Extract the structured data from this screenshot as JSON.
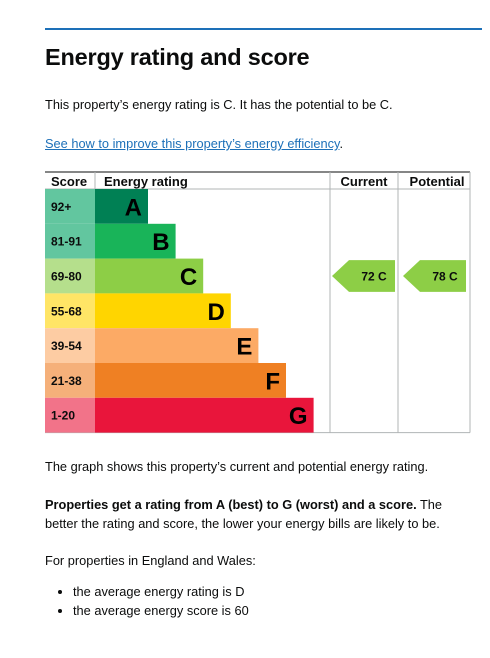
{
  "page": {
    "heading": "Energy rating and score",
    "summary": "This property’s energy rating is C. It has the potential to be C.",
    "link_text": "See how to improve this property’s energy efficiency",
    "link_suffix": ".",
    "graph_note": "The graph shows this property’s current and potential energy rating.",
    "bold_lead": "Properties get a rating from A (best) to G (worst) and a score.",
    "bold_rest": " The better the rating and score, the lower your energy bills are likely to be.",
    "regions": "For properties in England and Wales:",
    "averages": [
      "the average energy rating is D",
      "the average energy score is 60"
    ]
  },
  "chart_data": {
    "type": "table",
    "headers": {
      "score": "Score",
      "rating": "Energy rating",
      "current": "Current",
      "potential": "Potential"
    },
    "bands": [
      {
        "score": "92+",
        "letter": "A",
        "color": "#008054",
        "score_bg": "#62c69f"
      },
      {
        "score": "81-91",
        "letter": "B",
        "color": "#19b459",
        "score_bg": "#62c69f"
      },
      {
        "score": "69-80",
        "letter": "C",
        "color": "#8dce46",
        "score_bg": "#b5df8c"
      },
      {
        "score": "55-68",
        "letter": "D",
        "color": "#ffd500",
        "score_bg": "#ffe566"
      },
      {
        "score": "39-54",
        "letter": "E",
        "color": "#fcaa65",
        "score_bg": "#fdcca3"
      },
      {
        "score": "21-38",
        "letter": "F",
        "color": "#ef8023",
        "score_bg": "#f5b07a"
      },
      {
        "score": "1-20",
        "letter": "G",
        "color": "#e9153b",
        "score_bg": "#f27389"
      }
    ],
    "current": {
      "label": "72 C",
      "value": 72,
      "band": "C",
      "color": "#8dce46"
    },
    "potential": {
      "label": "78 C",
      "value": 78,
      "band": "C",
      "color": "#8dce46"
    }
  }
}
